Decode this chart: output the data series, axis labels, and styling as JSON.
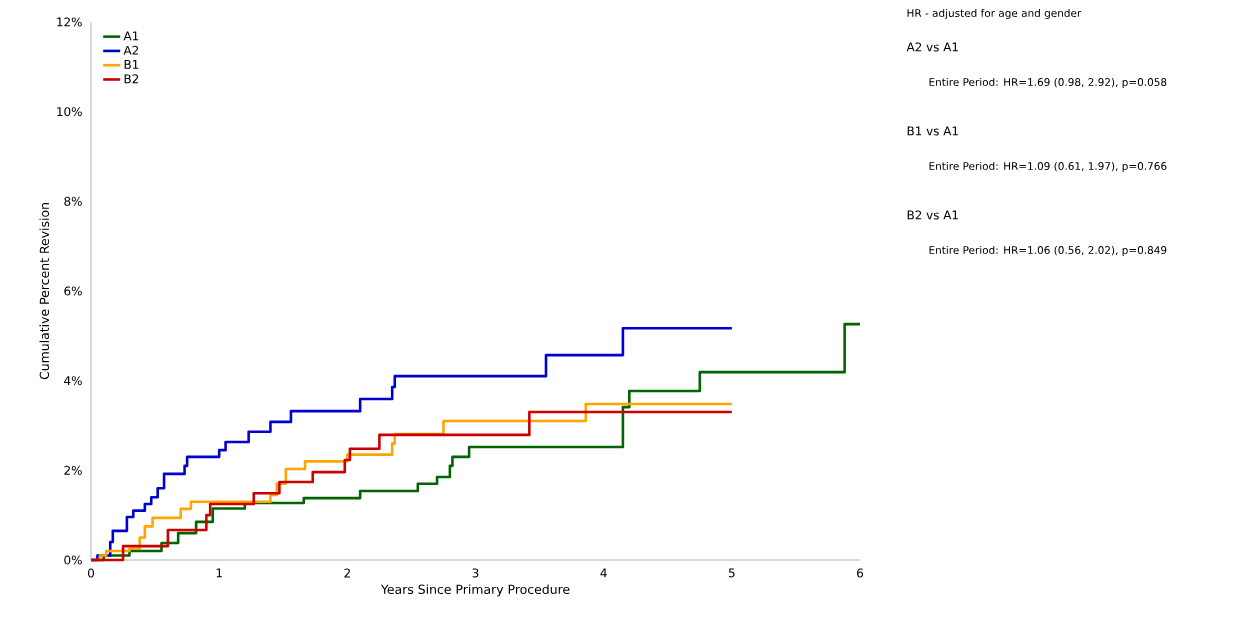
{
  "chart_data": {
    "type": "step",
    "xlabel": "Years Since Primary Procedure",
    "ylabel": "Cumulative Percent Revision",
    "xlim": [
      0,
      6
    ],
    "ylim": [
      0,
      12
    ],
    "xticks": [
      0,
      1,
      2,
      3,
      4,
      5,
      6
    ],
    "yticks": [
      {
        "value": 0,
        "label": "0%"
      },
      {
        "value": 2,
        "label": "2%"
      },
      {
        "value": 4,
        "label": "4%"
      },
      {
        "value": 6,
        "label": "6%"
      },
      {
        "value": 8,
        "label": "8%"
      },
      {
        "value": 10,
        "label": "10%"
      },
      {
        "value": 12,
        "label": "12%"
      }
    ],
    "legend": "top left",
    "grid": false,
    "marker": "none",
    "line_style": "solid",
    "annotations": [
      "HR - adjusted for age and gender",
      "A2 vs A1",
      "Entire Period: HR=1.69 (0.98, 2.92), p=0.058",
      "B1 vs A1",
      "Entire Period: HR=1.09 (0.61, 1.97), p=0.766",
      "B2 vs A1",
      "Entire Period: HR=1.06 (0.56, 2.02), p=0.849"
    ],
    "series": [
      {
        "name": "A1",
        "color": "#006400",
        "x": [
          0,
          0.1,
          0.3,
          0.55,
          0.68,
          0.82,
          0.9,
          0.95,
          1.2,
          1.66,
          2.1,
          2.55,
          2.7,
          2.8,
          2.82,
          2.95,
          4.15,
          4.2,
          4.75,
          5.88,
          6.0
        ],
        "values": [
          0,
          0.1,
          0.2,
          0.38,
          0.6,
          0.85,
          null,
          1.15,
          1.27,
          1.38,
          1.54,
          1.7,
          1.85,
          2.1,
          2.3,
          2.52,
          3.41,
          3.77,
          4.19,
          5.26,
          5.26
        ]
      },
      {
        "name": "A2",
        "color": "#0000cc",
        "x": [
          0,
          0.05,
          0.15,
          0.17,
          0.28,
          0.33,
          0.42,
          0.47,
          0.52,
          0.57,
          0.73,
          0.75,
          1.0,
          1.05,
          1.23,
          1.4,
          1.56,
          2.1,
          2.35,
          2.37,
          3.55,
          4.15,
          5.0
        ],
        "values": [
          0,
          0.1,
          0.4,
          0.65,
          0.96,
          1.1,
          1.25,
          1.4,
          1.6,
          1.92,
          2.1,
          2.3,
          2.45,
          2.63,
          2.86,
          3.08,
          3.32,
          3.59,
          3.86,
          4.1,
          4.57,
          5.17,
          5.17
        ]
      },
      {
        "name": "B1",
        "color": "#ffa500",
        "x": [
          0,
          0.07,
          0.12,
          0.3,
          0.38,
          0.42,
          0.48,
          0.7,
          0.78,
          1.4,
          1.45,
          1.52,
          1.67,
          2.0,
          2.35,
          2.37,
          2.75,
          3.86,
          5.0
        ],
        "values": [
          0,
          0.1,
          0.2,
          0.25,
          0.5,
          0.75,
          0.94,
          1.14,
          1.3,
          1.45,
          1.7,
          2.03,
          2.2,
          2.35,
          2.6,
          2.81,
          3.1,
          3.48,
          3.48
        ]
      },
      {
        "name": "B2",
        "color": "#cc0000",
        "x": [
          0,
          0.25,
          0.6,
          0.9,
          0.93,
          1.27,
          1.47,
          1.73,
          1.98,
          2.02,
          2.25,
          3.42,
          5.0
        ],
        "values": [
          0,
          0.31,
          0.67,
          1.0,
          1.25,
          1.49,
          1.74,
          1.96,
          2.23,
          2.48,
          2.79,
          3.3,
          3.3
        ]
      }
    ]
  }
}
